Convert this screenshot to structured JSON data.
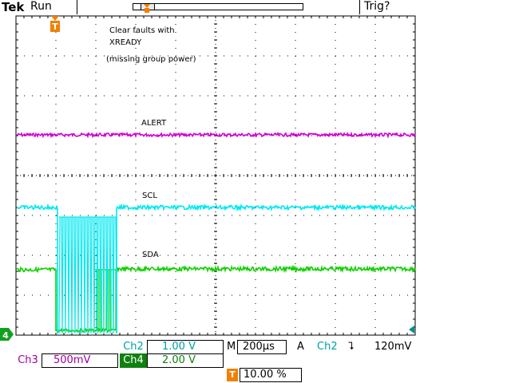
{
  "header": {
    "brand": "Tek",
    "run_state": "Run",
    "trigger_state": "Trig?"
  },
  "markers": {
    "trigger_letter": "T",
    "ground_ch4": "4"
  },
  "annotations": {
    "line1": "Clear faults with",
    "line2": "XREADY",
    "line3": "(missing group power)"
  },
  "traces": {
    "alert": {
      "label": "ALERT",
      "color": "#d000d0"
    },
    "scl": {
      "label": "SCL",
      "color": "#00e8f0"
    },
    "sda": {
      "label": "SDA",
      "color": "#10d000"
    }
  },
  "status": {
    "ch2_name": "Ch2",
    "ch2_scale": "1.00 V",
    "timebase_prefix": "M",
    "timebase": "200µs",
    "trigger_prefix": "A",
    "trigger_source": "Ch2",
    "trigger_slope": "⮧",
    "trigger_level": "120mV",
    "ch3_name": "Ch3",
    "ch3_scale": "500mV",
    "ch4_name": "Ch4",
    "ch4_scale": "2.00 V",
    "trigger_pos_letter": "T",
    "trigger_pos": "10.00 %"
  }
}
